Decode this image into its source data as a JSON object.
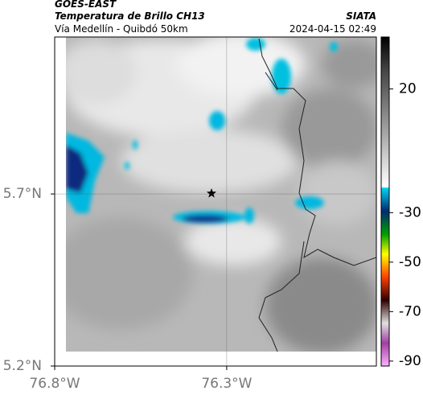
{
  "header": {
    "source": "GOES-EAST",
    "product": "Temperatura de Brillo CH13",
    "agency": "SIATA",
    "region": "Vía Medellín - Quibdó 50km",
    "timestamp": "2024-04-15 02:49"
  },
  "map": {
    "xlim": [
      -76.8,
      -75.865
    ],
    "ylim": [
      5.2,
      6.156
    ],
    "xticks": [
      {
        "value": -76.8,
        "label": "76.8°W"
      },
      {
        "value": -76.3,
        "label": "76.3°W"
      }
    ],
    "yticks": [
      {
        "value": 5.2,
        "label": "5.2°N"
      },
      {
        "value": 5.7,
        "label": "5.7°N"
      }
    ]
  },
  "colorbar": {
    "lim": [
      -92,
      41
    ],
    "ticks": [
      20,
      -30,
      -50,
      -70,
      -90
    ]
  }
}
